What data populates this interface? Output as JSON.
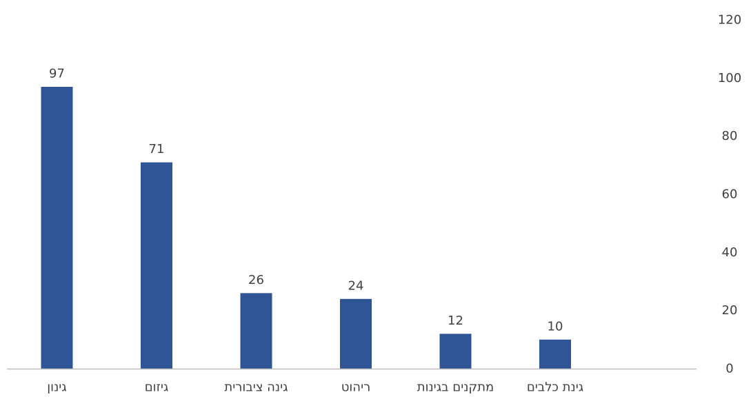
{
  "chart_data": {
    "type": "bar",
    "categories": [
      "גינון",
      "גיזום",
      "גינה ציבורית",
      "ריהוט",
      "מתקנים בגינות",
      "גינת כלבים"
    ],
    "values": [
      97,
      71,
      26,
      24,
      12,
      10
    ],
    "ylim": [
      0,
      120
    ],
    "yticks": [
      0,
      20,
      40,
      60,
      80,
      100,
      120
    ],
    "y_axis_side": "right",
    "grid": false,
    "legend": "none",
    "bar_color": "#2F5597",
    "axis_color": "#BFBFBF"
  }
}
